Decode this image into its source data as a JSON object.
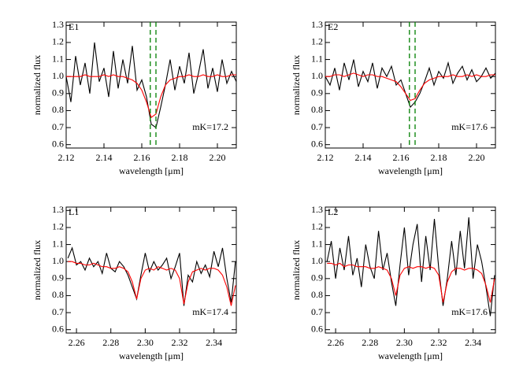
{
  "chart_data": [
    {
      "type": "line",
      "panel_label": "E1",
      "annotation": "mK=17.2",
      "xlabel": "wavelength [μm]",
      "ylabel": "normalized flux",
      "x": [
        2.12,
        2.1225,
        2.125,
        2.1275,
        2.13,
        2.1325,
        2.135,
        2.1375,
        2.14,
        2.1425,
        2.145,
        2.1475,
        2.15,
        2.1525,
        2.155,
        2.1575,
        2.16,
        2.1625,
        2.165,
        2.1675,
        2.17,
        2.1725,
        2.175,
        2.1775,
        2.18,
        2.1825,
        2.185,
        2.1875,
        2.19,
        2.1925,
        2.195,
        2.1975,
        2.2,
        2.2025,
        2.205,
        2.2075,
        2.21
      ],
      "series": [
        {
          "color": "#000000",
          "values": [
            1.0,
            0.85,
            1.12,
            0.95,
            1.08,
            0.9,
            1.2,
            0.97,
            1.05,
            0.88,
            1.15,
            0.93,
            1.1,
            0.96,
            1.18,
            0.92,
            0.98,
            0.88,
            0.72,
            0.7,
            0.82,
            0.95,
            1.1,
            0.92,
            1.06,
            0.96,
            1.14,
            0.9,
            1.02,
            1.16,
            0.93,
            1.05,
            0.91,
            1.1,
            0.96,
            1.03,
            0.97
          ]
        },
        {
          "color": "#ff0000",
          "values": [
            1.0,
            1.0,
            1.0,
            1.0,
            1.01,
            1.0,
            1.0,
            1.0,
            1.01,
            1.0,
            1.01,
            1.0,
            1.0,
            0.99,
            0.98,
            0.96,
            0.92,
            0.85,
            0.76,
            0.78,
            0.88,
            0.95,
            0.98,
            0.99,
            1.0,
            1.0,
            1.01,
            1.0,
            1.0,
            1.01,
            1.0,
            1.0,
            1.01,
            1.0,
            1.0,
            1.01,
            1.01
          ]
        }
      ],
      "vlines": [
        2.1645,
        2.1675
      ],
      "vline_color": "#008000",
      "xlim": [
        2.12,
        2.21
      ],
      "xticks": [
        2.12,
        2.14,
        2.16,
        2.18,
        {
          "value": 2.2,
          "label": "2.20"
        }
      ],
      "ylim": [
        0.58,
        1.32
      ],
      "yticks": [
        0.6,
        0.7,
        0.8,
        0.9,
        {
          "value": 1,
          "label": "1.0"
        },
        1.1,
        1.2,
        1.3
      ]
    },
    {
      "type": "line",
      "panel_label": "E2",
      "annotation": "mK=17.6",
      "xlabel": "wavelength [μm]",
      "ylabel": "normalized flux",
      "x": [
        2.12,
        2.1225,
        2.125,
        2.1275,
        2.13,
        2.1325,
        2.135,
        2.1375,
        2.14,
        2.1425,
        2.145,
        2.1475,
        2.15,
        2.1525,
        2.155,
        2.1575,
        2.16,
        2.1625,
        2.165,
        2.1675,
        2.17,
        2.1725,
        2.175,
        2.1775,
        2.18,
        2.1825,
        2.185,
        2.1875,
        2.19,
        2.1925,
        2.195,
        2.1975,
        2.2,
        2.2025,
        2.205,
        2.2075,
        2.21
      ],
      "series": [
        {
          "color": "#000000",
          "values": [
            1.0,
            0.95,
            1.05,
            0.92,
            1.08,
            0.98,
            1.1,
            0.94,
            1.03,
            0.97,
            1.08,
            0.93,
            1.05,
            1.0,
            1.06,
            0.95,
            0.98,
            0.9,
            0.82,
            0.85,
            0.9,
            0.97,
            1.05,
            0.95,
            1.03,
            0.99,
            1.08,
            0.96,
            1.02,
            1.06,
            0.98,
            1.04,
            0.97,
            1.0,
            1.05,
            0.99,
            1.02
          ]
        },
        {
          "color": "#ff0000",
          "values": [
            1.0,
            1.0,
            1.01,
            1.01,
            1.0,
            1.01,
            1.02,
            1.01,
            1.0,
            1.01,
            1.01,
            1.0,
            1.0,
            0.99,
            0.98,
            0.97,
            0.94,
            0.9,
            0.86,
            0.87,
            0.92,
            0.96,
            0.98,
            0.99,
            1.0,
            1.0,
            1.0,
            1.01,
            1.0,
            1.0,
            1.01,
            1.0,
            1.01,
            1.0,
            1.0,
            1.01,
            1.01
          ]
        }
      ],
      "vlines": [
        2.1645,
        2.1675
      ],
      "vline_color": "#008000",
      "xlim": [
        2.12,
        2.21
      ],
      "xticks": [
        2.12,
        2.14,
        2.16,
        2.18,
        {
          "value": 2.2,
          "label": "2.20"
        }
      ],
      "ylim": [
        0.58,
        1.32
      ],
      "yticks": [
        0.6,
        0.7,
        0.8,
        0.9,
        {
          "value": 1,
          "label": "1.0"
        },
        1.1,
        1.2,
        1.3
      ]
    },
    {
      "type": "line",
      "panel_label": "L1",
      "annotation": "mK=17.4",
      "xlabel": "wavelength [μm]",
      "ylabel": "normalized flux",
      "x": [
        2.255,
        2.2575,
        2.26,
        2.2625,
        2.265,
        2.2675,
        2.27,
        2.2725,
        2.275,
        2.2775,
        2.28,
        2.2825,
        2.285,
        2.2875,
        2.29,
        2.2925,
        2.295,
        2.2975,
        2.3,
        2.3025,
        2.305,
        2.3075,
        2.31,
        2.3125,
        2.315,
        2.3175,
        2.32,
        2.3225,
        2.325,
        2.3275,
        2.33,
        2.3325,
        2.335,
        2.3375,
        2.34,
        2.3425,
        2.345,
        2.3475,
        2.35,
        2.3525
      ],
      "series": [
        {
          "color": "#000000",
          "values": [
            1.02,
            1.08,
            0.98,
            1.0,
            0.95,
            1.02,
            0.97,
            1.0,
            0.93,
            1.05,
            0.96,
            0.94,
            1.0,
            0.97,
            0.92,
            0.85,
            0.78,
            0.92,
            1.05,
            0.94,
            1.0,
            0.95,
            0.98,
            1.02,
            0.9,
            0.97,
            1.05,
            0.74,
            0.92,
            0.88,
            1.0,
            0.93,
            0.98,
            0.91,
            1.06,
            0.97,
            1.08,
            0.9,
            0.76,
            1.0
          ]
        },
        {
          "color": "#ff0000",
          "values": [
            1.0,
            1.0,
            0.99,
            0.99,
            0.98,
            0.98,
            0.99,
            0.98,
            0.97,
            0.97,
            0.96,
            0.96,
            0.97,
            0.96,
            0.94,
            0.88,
            0.78,
            0.9,
            0.95,
            0.96,
            0.95,
            0.97,
            0.96,
            0.95,
            0.96,
            0.95,
            0.9,
            0.75,
            0.88,
            0.94,
            0.95,
            0.96,
            0.95,
            0.96,
            0.96,
            0.95,
            0.92,
            0.85,
            0.74,
            0.86
          ]
        }
      ],
      "xlim": [
        2.254,
        2.353
      ],
      "xticks": [
        2.26,
        2.28,
        {
          "value": 2.3,
          "label": "2.30"
        },
        2.32,
        2.34
      ],
      "ylim": [
        0.58,
        1.32
      ],
      "yticks": [
        0.6,
        0.7,
        0.8,
        0.9,
        {
          "value": 1,
          "label": "1.0"
        },
        1.1,
        1.2,
        1.3
      ]
    },
    {
      "type": "line",
      "panel_label": "L2",
      "annotation": "mK=17.6",
      "xlabel": "wavelength [μm]",
      "ylabel": "normalized flux",
      "x": [
        2.255,
        2.2575,
        2.26,
        2.2625,
        2.265,
        2.2675,
        2.27,
        2.2725,
        2.275,
        2.2775,
        2.28,
        2.2825,
        2.285,
        2.2875,
        2.29,
        2.2925,
        2.295,
        2.2975,
        2.3,
        2.3025,
        2.305,
        2.3075,
        2.31,
        2.3125,
        2.315,
        2.3175,
        2.32,
        2.3225,
        2.325,
        2.3275,
        2.33,
        2.3325,
        2.335,
        2.3375,
        2.34,
        2.3425,
        2.345,
        2.3475,
        2.35,
        2.3525
      ],
      "series": [
        {
          "color": "#000000",
          "values": [
            1.0,
            1.12,
            0.9,
            1.08,
            0.95,
            1.15,
            0.92,
            1.02,
            0.85,
            1.1,
            0.97,
            0.9,
            1.18,
            0.95,
            1.05,
            0.88,
            0.74,
            0.98,
            1.2,
            0.92,
            1.1,
            1.22,
            0.88,
            1.15,
            0.95,
            1.25,
            0.96,
            0.74,
            0.9,
            1.12,
            0.92,
            1.18,
            0.96,
            1.26,
            0.9,
            1.1,
            1.0,
            0.85,
            0.68,
            0.92
          ]
        },
        {
          "color": "#ff0000",
          "values": [
            0.99,
            0.99,
            0.98,
            0.99,
            0.97,
            0.98,
            0.98,
            0.97,
            0.97,
            0.97,
            0.96,
            0.96,
            0.97,
            0.96,
            0.95,
            0.9,
            0.8,
            0.92,
            0.96,
            0.97,
            0.96,
            0.97,
            0.97,
            0.96,
            0.97,
            0.96,
            0.92,
            0.76,
            0.88,
            0.94,
            0.96,
            0.96,
            0.95,
            0.96,
            0.96,
            0.95,
            0.93,
            0.86,
            0.76,
            0.9
          ]
        }
      ],
      "xlim": [
        2.254,
        2.353
      ],
      "xticks": [
        2.26,
        2.28,
        {
          "value": 2.3,
          "label": "2.30"
        },
        2.32,
        2.34
      ],
      "ylim": [
        0.58,
        1.32
      ],
      "yticks": [
        0.6,
        0.7,
        0.8,
        0.9,
        {
          "value": 1,
          "label": "1.0"
        },
        1.1,
        1.2,
        1.3
      ]
    }
  ]
}
